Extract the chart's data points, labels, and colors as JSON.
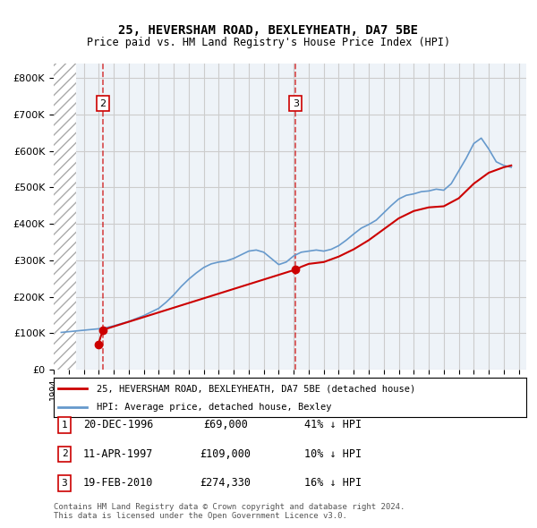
{
  "title1": "25, HEVERSHAM ROAD, BEXLEYHEATH, DA7 5BE",
  "title2": "Price paid vs. HM Land Registry's House Price Index (HPI)",
  "ylabel_ticks": [
    "£0",
    "£100K",
    "£200K",
    "£300K",
    "£400K",
    "£500K",
    "£600K",
    "£700K",
    "£800K"
  ],
  "ytick_values": [
    0,
    100000,
    200000,
    300000,
    400000,
    500000,
    600000,
    700000,
    800000
  ],
  "ylim": [
    0,
    840000
  ],
  "xlim_start": 1994.0,
  "xlim_end": 2025.5,
  "hatch_end": 1995.5,
  "legend_line1": "25, HEVERSHAM ROAD, BEXLEYHEATH, DA7 5BE (detached house)",
  "legend_line2": "HPI: Average price, detached house, Bexley",
  "sale_label1": "1",
  "sale_date1": "20-DEC-1996",
  "sale_price1": "£69,000",
  "sale_hpi1": "41% ↓ HPI",
  "sale_label2": "2",
  "sale_date2": "11-APR-1997",
  "sale_price2": "£109,000",
  "sale_hpi2": "10% ↓ HPI",
  "sale_label3": "3",
  "sale_date3": "19-FEB-2010",
  "sale_price3": "£274,330",
  "sale_hpi3": "16% ↓ HPI",
  "footer": "Contains HM Land Registry data © Crown copyright and database right 2024.\nThis data is licensed under the Open Government Licence v3.0.",
  "color_red": "#cc0000",
  "color_blue": "#6699cc",
  "color_hatch": "#dddddd",
  "color_grid": "#cccccc",
  "color_bg_chart": "#eef3f8",
  "vline_color": "#cc0000",
  "vline_alpha": 0.7,
  "sale1_x": 1996.97,
  "sale1_y": 69000,
  "sale2_x": 1997.28,
  "sale2_y": 109000,
  "sale3_x": 2010.12,
  "sale3_y": 274330,
  "hpi_years": [
    1994.5,
    1995.0,
    1995.5,
    1996.0,
    1996.5,
    1997.0,
    1997.5,
    1998.0,
    1998.5,
    1999.0,
    1999.5,
    2000.0,
    2000.5,
    2001.0,
    2001.5,
    2002.0,
    2002.5,
    2003.0,
    2003.5,
    2004.0,
    2004.5,
    2005.0,
    2005.5,
    2006.0,
    2006.5,
    2007.0,
    2007.5,
    2008.0,
    2008.5,
    2009.0,
    2009.5,
    2010.0,
    2010.5,
    2011.0,
    2011.5,
    2012.0,
    2012.5,
    2013.0,
    2013.5,
    2014.0,
    2014.5,
    2015.0,
    2015.5,
    2016.0,
    2016.5,
    2017.0,
    2017.5,
    2018.0,
    2018.5,
    2019.0,
    2019.5,
    2020.0,
    2020.5,
    2021.0,
    2021.5,
    2022.0,
    2022.5,
    2023.0,
    2023.5,
    2024.0,
    2024.5
  ],
  "hpi_values": [
    102000,
    104000,
    106000,
    108000,
    110000,
    112000,
    115000,
    120000,
    126000,
    132000,
    140000,
    148000,
    158000,
    168000,
    185000,
    205000,
    228000,
    248000,
    265000,
    280000,
    290000,
    295000,
    298000,
    305000,
    315000,
    325000,
    328000,
    322000,
    305000,
    288000,
    295000,
    312000,
    322000,
    325000,
    328000,
    325000,
    330000,
    340000,
    355000,
    372000,
    388000,
    398000,
    410000,
    430000,
    450000,
    468000,
    478000,
    482000,
    488000,
    490000,
    495000,
    492000,
    510000,
    545000,
    580000,
    620000,
    635000,
    605000,
    570000,
    560000,
    555000
  ],
  "red_line_years": [
    1996.97,
    1997.28,
    2010.12,
    2010.5,
    2011.0,
    2012.0,
    2013.0,
    2014.0,
    2015.0,
    2016.0,
    2017.0,
    2018.0,
    2019.0,
    2020.0,
    2021.0,
    2022.0,
    2023.0,
    2024.0,
    2024.5
  ],
  "red_line_values": [
    69000,
    109000,
    274330,
    282000,
    290000,
    295000,
    310000,
    330000,
    355000,
    385000,
    415000,
    435000,
    445000,
    448000,
    470000,
    510000,
    540000,
    555000,
    560000
  ]
}
